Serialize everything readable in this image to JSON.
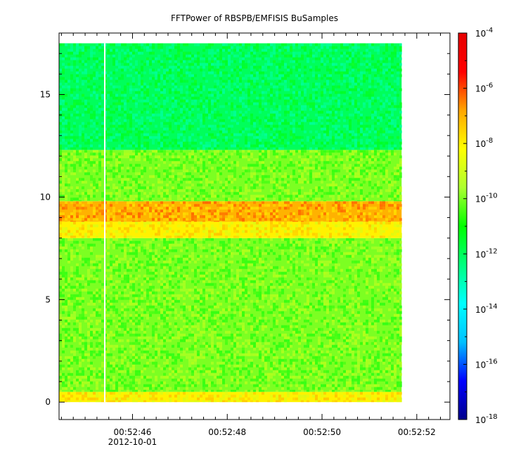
{
  "chart_data": {
    "type": "heatmap",
    "title": "FFTPower of RBSPB/EMFISIS  BuSamples",
    "xlabel": "",
    "ylabel": "",
    "x_range": [
      "00:52:44.45",
      "00:52:52.7"
    ],
    "y_range": [
      -0.85,
      18.0
    ],
    "x_ticks": [
      {
        "value": "00:52:46",
        "label": "00:52:46",
        "sublabel": "2012-10-01"
      },
      {
        "value": "00:52:48",
        "label": "00:52:48"
      },
      {
        "value": "00:52:50",
        "label": "00:52:50"
      },
      {
        "value": "00:52:52",
        "label": "00:52:52"
      }
    ],
    "y_ticks": [
      0,
      5,
      10,
      15
    ],
    "data_extent": {
      "x_start": "00:52:44.45",
      "x_end": "00:52:51.68",
      "y_min": 0,
      "y_max": 17.5
    },
    "data_gap": {
      "x_start": "00:52:45.4",
      "x_end": "00:52:45.43"
    },
    "colorbar": {
      "scale": "log",
      "range": [
        1e-18,
        0.0001
      ],
      "tick_labels": [
        "10-4",
        "10-6",
        "10-8",
        "10-10",
        "10-12",
        "10-14",
        "10-16",
        "10-18"
      ],
      "colormap": [
        "#00008b",
        "#0000ff",
        "#00bfff",
        "#00ffff",
        "#00ff7f",
        "#00ff00",
        "#adff2f",
        "#ffff00",
        "#ffa500",
        "#ff0000",
        "#e60000"
      ]
    },
    "spectral_bands": [
      {
        "y_from": 0.0,
        "y_to": 0.5,
        "level": "1e-8"
      },
      {
        "y_from": 0.5,
        "y_to": 8.0,
        "level": "1e-10"
      },
      {
        "y_from": 8.0,
        "y_to": 8.8,
        "level": "1e-8"
      },
      {
        "y_from": 8.8,
        "y_to": 9.8,
        "level": "1e-7"
      },
      {
        "y_from": 9.8,
        "y_to": 12.3,
        "level": "1e-10"
      },
      {
        "y_from": 12.3,
        "y_to": 17.5,
        "level": "1e-12"
      }
    ],
    "grid": false
  }
}
